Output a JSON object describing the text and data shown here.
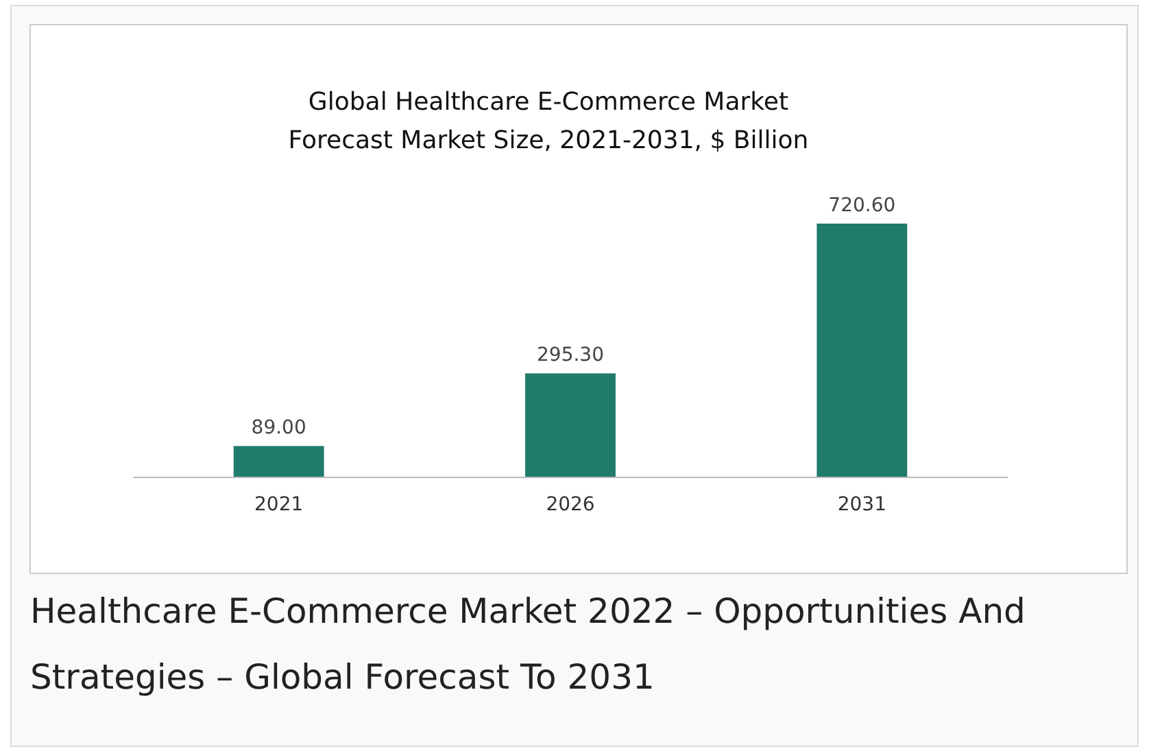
{
  "chart_data": {
    "type": "bar",
    "title": "Global Healthcare E-Commerce Market\nForecast Market Size, 2021-2031, $ Billion",
    "categories": [
      "2021",
      "2026",
      "2031"
    ],
    "values": [
      89.0,
      295.3,
      720.6
    ],
    "value_labels": [
      "89.00",
      "295.30",
      "720.60"
    ],
    "color": "#207b6c",
    "annotations": [
      "Healthcare E-Commerce Market 2022 – Opportunities And Strategies – Global Forecast To 2031"
    ]
  }
}
